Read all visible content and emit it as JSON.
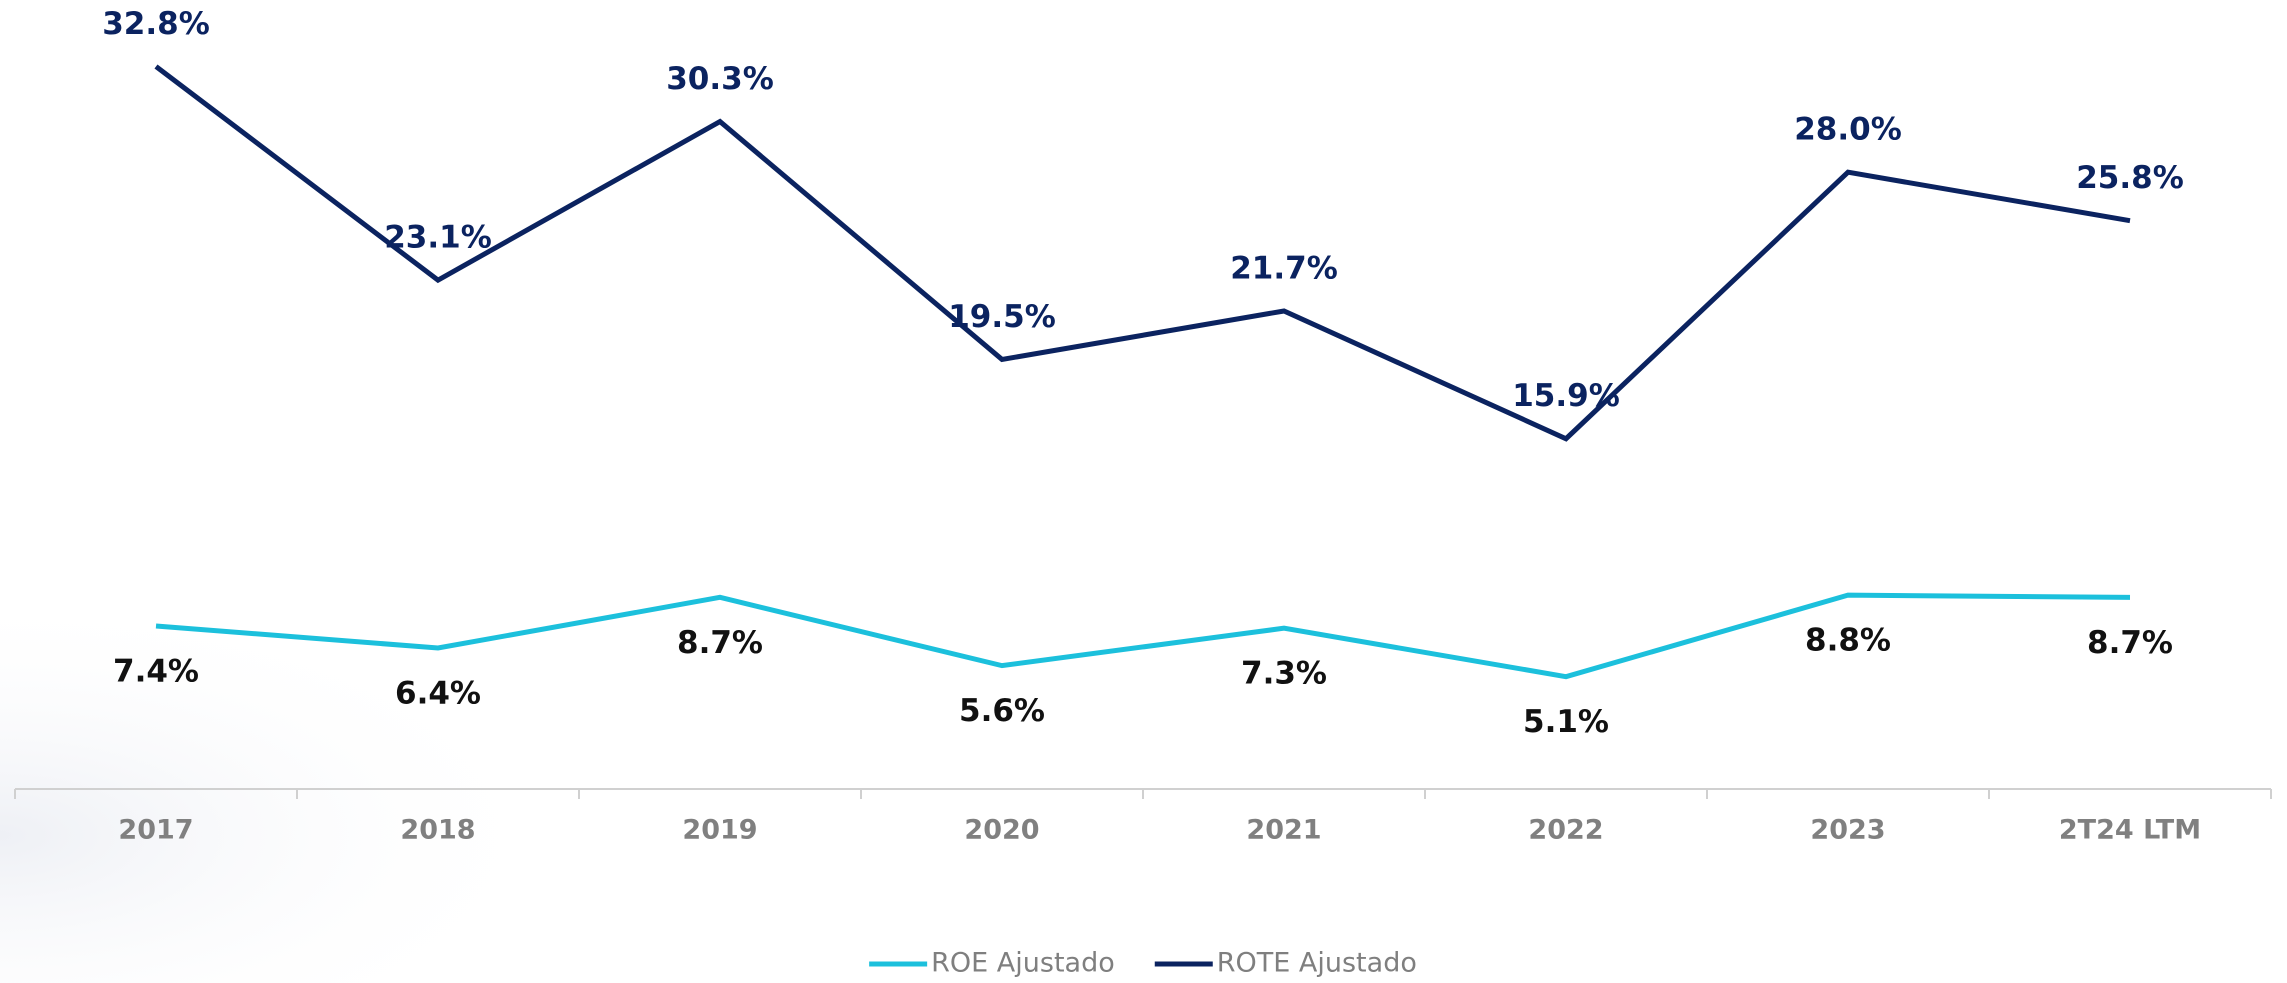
{
  "chart_data": {
    "type": "line",
    "categories": [
      "2017",
      "2018",
      "2019",
      "2020",
      "2021",
      "2022",
      "2023",
      "2T24 LTM"
    ],
    "series": [
      {
        "name": "ROE Ajustado",
        "color": "#1cc0dc",
        "values": [
          7.4,
          6.4,
          8.7,
          5.6,
          7.3,
          5.1,
          8.8,
          8.7
        ],
        "value_labels": [
          "7.4%",
          "6.4%",
          "8.7%",
          "5.6%",
          "7.3%",
          "5.1%",
          "8.8%",
          "8.7%"
        ]
      },
      {
        "name": "ROTE Ajustado",
        "color": "#0b2360",
        "values": [
          32.8,
          23.1,
          30.3,
          19.5,
          21.7,
          15.9,
          28.0,
          25.8
        ],
        "value_labels": [
          "32.8%",
          "23.1%",
          "30.3%",
          "19.5%",
          "21.7%",
          "15.9%",
          "28.0%",
          "25.8%"
        ]
      }
    ],
    "ylim": [
      0,
      35
    ],
    "legend": "bottom"
  }
}
